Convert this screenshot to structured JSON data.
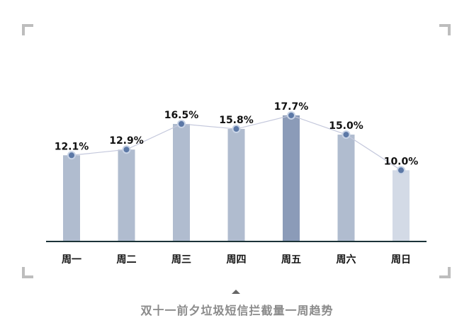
{
  "caption": "双十一前夕垃圾短信拦截量一周趋势",
  "chart_data": {
    "type": "bar",
    "title": "",
    "xlabel": "",
    "ylabel": "",
    "categories": [
      "周一",
      "周二",
      "周三",
      "周四",
      "周五",
      "周六",
      "周日"
    ],
    "values": [
      12.1,
      12.9,
      16.5,
      15.8,
      17.7,
      15.0,
      10.0
    ],
    "data_labels": [
      "12.1%",
      "12.9%",
      "16.5%",
      "15.8%",
      "17.7%",
      "15.0%",
      "10.0%"
    ],
    "unit": "%",
    "ylim": [
      0,
      20
    ],
    "grid": false,
    "legend": "none",
    "trend_line": true,
    "colors": {
      "bar_default": "#b0bccf",
      "bar_max": "#8b9bb8",
      "bar_min": "#d3dae6",
      "line": "#c4c8dc",
      "marker_fill": "#5c78a6",
      "marker_edge": "#c9d4e6",
      "baseline": "#1b3338",
      "label": "#111111"
    }
  }
}
